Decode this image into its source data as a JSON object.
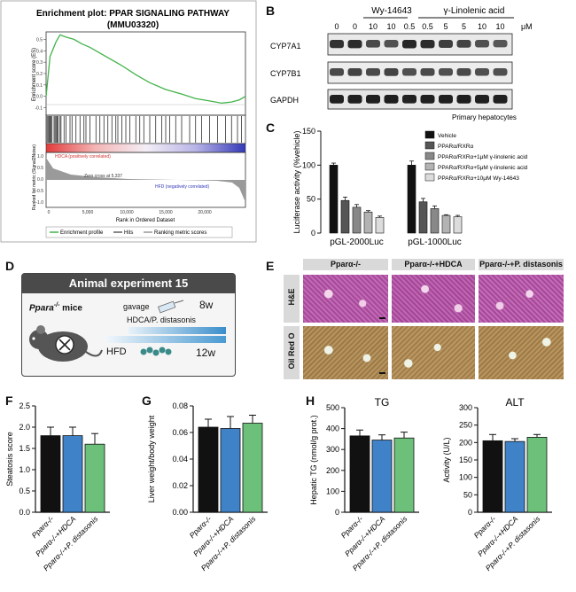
{
  "panel_labels": {
    "A": "A",
    "B": "B",
    "C": "C",
    "D": "D",
    "E": "E",
    "F": "F",
    "G": "G",
    "H": "H"
  },
  "panelA": {
    "title_line1": "Enrichment plot: PPAR SIGNALING PATHWAY",
    "title_line2": "(MMU03320)",
    "es_ylabel": "Enrichment score (ES)",
    "rank_ylabel": "Ranked list metric (Signal2Noise)",
    "xlabel": "Rank in Ordered Dataset",
    "es_ticks": [
      "0.5",
      "0.4",
      "0.3",
      "0.2",
      "0.1",
      "0.0",
      "-0.1"
    ],
    "rank_ticks": [
      "1.0",
      "0.5",
      "0.0",
      "-0.5",
      "-1.0"
    ],
    "x_ticks": [
      "0",
      "5,000",
      "10,000",
      "15,000",
      "20,000"
    ],
    "pos_label": "HDCA (positively correlated)",
    "neg_label": "HFD (negatively correlated)",
    "zero_label": "Zero cross at 5,337",
    "legend": [
      "Enrichment profile",
      "Hits",
      "Ranking metric scores"
    ]
  },
  "panelB": {
    "group_wy": "Wy-14643",
    "group_gla": "γ-Linolenic acid",
    "concentrations": [
      "0",
      "0",
      "10",
      "10",
      "0.5",
      "0.5",
      "5",
      "5",
      "10",
      "10"
    ],
    "unit": "μM",
    "bands": [
      "CYP7A1",
      "CYP7B1",
      "GAPDH"
    ],
    "caption": "Primary hepatocytes"
  },
  "panelD": {
    "title": "Animal experiment 15",
    "mouse_label": "Ppara",
    "mouse_sup": "-/-",
    "mouse_suffix": " mice",
    "gavage": "gavage",
    "treatment": "HDCA/P. distasonis",
    "hfd": "HFD",
    "week8": "8w",
    "week12": "12w"
  },
  "panelE": {
    "columns": [
      "Pparα-/-",
      "Pparα-/-+HDCA",
      "Pparα-/-+P. distasonis"
    ],
    "rows": [
      "H&E",
      "Oil Red O"
    ]
  },
  "groups_short": [
    "Pparα-/-",
    "Pparα-/-+HDCA",
    "Pparα-/-+P. distasonis"
  ],
  "colors": {
    "group1": "#111111",
    "group2": "#3f82c8",
    "group3": "#6cc07a"
  },
  "chart_data": [
    {
      "id": "C",
      "type": "bar",
      "ylabel": "Luciferase activity (%vehicle)",
      "ylim": [
        0,
        150
      ],
      "yticks": [
        0,
        50,
        100,
        150
      ],
      "categories": [
        "pGL-2000Luc",
        "pGL-1000Luc"
      ],
      "series": [
        {
          "name": "Vehicle",
          "color": "#111111",
          "values": [
            100,
            100
          ],
          "errors": [
            3,
            6
          ]
        },
        {
          "name": "PPARα/RXRα",
          "color": "#555555",
          "values": [
            48,
            46
          ],
          "errors": [
            5,
            5
          ]
        },
        {
          "name": "PPARα/RXRα+1μM γ-linolenic acid",
          "color": "#888888",
          "values": [
            38,
            36
          ],
          "errors": [
            4,
            4
          ]
        },
        {
          "name": "PPARα/RXRα+5μM γ-linolenic acid",
          "color": "#b3b3b3",
          "values": [
            31,
            26
          ],
          "errors": [
            2,
            1
          ]
        },
        {
          "name": "PPARα/RXRα+10μM Wy-14643",
          "color": "#dcdcdc",
          "values": [
            23,
            24
          ],
          "errors": [
            2,
            2
          ]
        }
      ]
    },
    {
      "id": "F",
      "type": "bar",
      "ylabel": "Steatosis score",
      "ylim": [
        0,
        2.5
      ],
      "yticks": [
        "0.0",
        "0.5",
        "1.0",
        "1.5",
        "2.0",
        "2.5"
      ],
      "categories": [
        "Pparα-/-",
        "Pparα-/-+HDCA",
        "Pparα-/-+P. distasonis"
      ],
      "values": [
        1.8,
        1.8,
        1.6
      ],
      "errors": [
        0.2,
        0.2,
        0.25
      ]
    },
    {
      "id": "G",
      "type": "bar",
      "ylabel": "Liver weight/body weight",
      "ylim": [
        0,
        0.08
      ],
      "yticks": [
        "0.00",
        "0.02",
        "0.04",
        "0.06",
        "0.08"
      ],
      "categories": [
        "Pparα-/-",
        "Pparα-/-+HDCA",
        "Pparα-/-+P. distasonis"
      ],
      "values": [
        0.064,
        0.063,
        0.067
      ],
      "errors": [
        0.006,
        0.009,
        0.006
      ]
    },
    {
      "id": "H1",
      "type": "bar",
      "title": "TG",
      "ylabel": "Hepatic TG (nmol/g prot.)",
      "ylim": [
        0,
        500
      ],
      "yticks": [
        "0",
        "100",
        "200",
        "300",
        "400",
        "500"
      ],
      "categories": [
        "Pparα-/-",
        "Pparα-/-+HDCA",
        "Pparα-/-+P. distasonis"
      ],
      "values": [
        365,
        345,
        355
      ],
      "errors": [
        28,
        25,
        28
      ]
    },
    {
      "id": "H2",
      "type": "bar",
      "title": "ALT",
      "ylabel": "Activity (U/L)",
      "ylim": [
        0,
        300
      ],
      "yticks": [
        "0",
        "50",
        "100",
        "150",
        "200",
        "250",
        "300"
      ],
      "categories": [
        "Pparα-/-",
        "Pparα-/-+HDCA",
        "Pparα-/-+P. distasonis"
      ],
      "values": [
        205,
        203,
        215
      ],
      "errors": [
        18,
        8,
        8
      ]
    }
  ]
}
